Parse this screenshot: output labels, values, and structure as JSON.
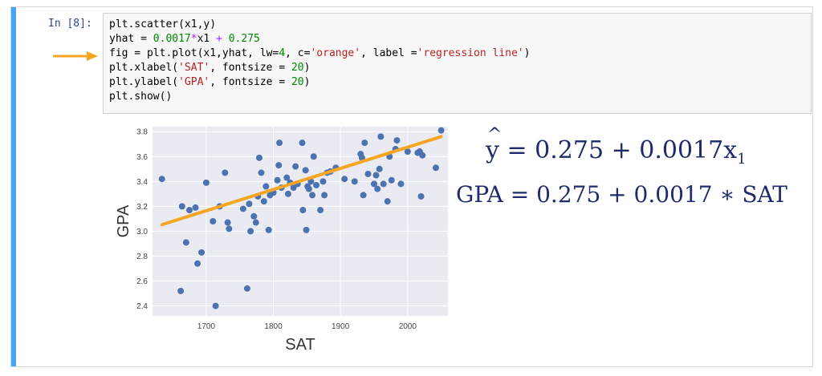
{
  "cell": {
    "prompt": "In [8]:",
    "code_lines": [
      {
        "parts": [
          {
            "t": "plt.scatter(x1,y)",
            "c": ""
          }
        ]
      },
      {
        "parts": [
          {
            "t": "yhat = ",
            "c": ""
          },
          {
            "t": "0.0017",
            "c": "num"
          },
          {
            "t": "*",
            "c": "op"
          },
          {
            "t": "x1 ",
            "c": ""
          },
          {
            "t": "+",
            "c": "op"
          },
          {
            "t": " ",
            "c": ""
          },
          {
            "t": "0.275",
            "c": "num"
          }
        ]
      },
      {
        "parts": [
          {
            "t": "fig = plt.plot(x1,yhat, lw=",
            "c": ""
          },
          {
            "t": "4",
            "c": "num"
          },
          {
            "t": ", c=",
            "c": ""
          },
          {
            "t": "'orange'",
            "c": "str"
          },
          {
            "t": ", label =",
            "c": ""
          },
          {
            "t": "'regression line'",
            "c": "str"
          },
          {
            "t": ")",
            "c": ""
          }
        ]
      },
      {
        "parts": [
          {
            "t": "plt.xlabel(",
            "c": ""
          },
          {
            "t": "'SAT'",
            "c": "str"
          },
          {
            "t": ", fontsize = ",
            "c": ""
          },
          {
            "t": "20",
            "c": "num"
          },
          {
            "t": ")",
            "c": ""
          }
        ]
      },
      {
        "parts": [
          {
            "t": "plt.ylabel(",
            "c": ""
          },
          {
            "t": "'GPA'",
            "c": "str"
          },
          {
            "t": ", fontsize = ",
            "c": ""
          },
          {
            "t": "20",
            "c": "num"
          },
          {
            "t": ")",
            "c": ""
          }
        ]
      },
      {
        "parts": [
          {
            "t": "plt.show()",
            "c": ""
          }
        ]
      }
    ]
  },
  "equations": {
    "eq1_lhs": "y",
    "eq1_rhs": " = 0.275 + 0.0017x",
    "eq1_sub": "1",
    "eq2": "GPA = 0.275 + 0.0017 ∗ SAT"
  },
  "colors": {
    "accent_bar": "#42a5f5",
    "arrow": "#f5a623",
    "points": "#4c72b0",
    "regression": "#f5a623",
    "plot_bg": "#eaeaf2"
  },
  "chart_data": {
    "type": "scatter",
    "xlabel": "SAT",
    "ylabel": "GPA",
    "xlim": [
      1620,
      2060
    ],
    "ylim": [
      2.32,
      3.84
    ],
    "xticks": [
      1700,
      1800,
      1900,
      2000
    ],
    "yticks": [
      2.4,
      2.6,
      2.8,
      3.0,
      3.2,
      3.4,
      3.6,
      3.8
    ],
    "xtick_labels": [
      "1700",
      "1800",
      "1900",
      "2000"
    ],
    "ytick_labels": [
      "2.4",
      "2.6",
      "2.8",
      "3.0",
      "3.2",
      "3.4",
      "3.6",
      "3.8"
    ],
    "grid": true,
    "points": [
      [
        1634,
        3.42
      ],
      [
        1662,
        2.52
      ],
      [
        1664,
        3.2
      ],
      [
        1670,
        2.91
      ],
      [
        1675,
        3.17
      ],
      [
        1684,
        3.19
      ],
      [
        1687,
        2.74
      ],
      [
        1693,
        2.83
      ],
      [
        1700,
        3.39
      ],
      [
        1710,
        3.08
      ],
      [
        1714,
        2.4
      ],
      [
        1720,
        3.2
      ],
      [
        1728,
        3.47
      ],
      [
        1732,
        3.07
      ],
      [
        1734,
        3.02
      ],
      [
        1755,
        3.18
      ],
      [
        1761,
        2.54
      ],
      [
        1764,
        3.22
      ],
      [
        1766,
        3.0
      ],
      [
        1771,
        3.12
      ],
      [
        1774,
        3.07
      ],
      [
        1777,
        3.28
      ],
      [
        1779,
        3.59
      ],
      [
        1782,
        3.47
      ],
      [
        1786,
        3.24
      ],
      [
        1789,
        3.36
      ],
      [
        1793,
        3.01
      ],
      [
        1795,
        3.29
      ],
      [
        1800,
        3.31
      ],
      [
        1806,
        3.41
      ],
      [
        1808,
        3.53
      ],
      [
        1809,
        3.71
      ],
      [
        1812,
        3.35
      ],
      [
        1820,
        3.43
      ],
      [
        1822,
        3.3
      ],
      [
        1825,
        3.39
      ],
      [
        1830,
        3.35
      ],
      [
        1833,
        3.52
      ],
      [
        1836,
        3.38
      ],
      [
        1843,
        3.71
      ],
      [
        1844,
        3.17
      ],
      [
        1848,
        3.49
      ],
      [
        1849,
        3.01
      ],
      [
        1851,
        3.36
      ],
      [
        1853,
        3.34
      ],
      [
        1856,
        3.4
      ],
      [
        1858,
        3.29
      ],
      [
        1860,
        3.6
      ],
      [
        1864,
        3.37
      ],
      [
        1870,
        3.17
      ],
      [
        1874,
        3.4
      ],
      [
        1876,
        3.29
      ],
      [
        1880,
        3.47
      ],
      [
        1885,
        3.48
      ],
      [
        1893,
        3.51
      ],
      [
        1906,
        3.42
      ],
      [
        1921,
        3.4
      ],
      [
        1930,
        3.62
      ],
      [
        1932,
        3.59
      ],
      [
        1934,
        3.29
      ],
      [
        1936,
        3.71
      ],
      [
        1941,
        3.46
      ],
      [
        1950,
        3.38
      ],
      [
        1953,
        3.45
      ],
      [
        1955,
        3.34
      ],
      [
        1958,
        3.5
      ],
      [
        1960,
        3.76
      ],
      [
        1964,
        3.38
      ],
      [
        1970,
        3.24
      ],
      [
        1973,
        3.6
      ],
      [
        1976,
        3.41
      ],
      [
        1982,
        3.66
      ],
      [
        1984,
        3.73
      ],
      [
        1990,
        3.38
      ],
      [
        2000,
        3.64
      ],
      [
        2015,
        3.63
      ],
      [
        2018,
        3.64
      ],
      [
        2020,
        3.28
      ],
      [
        2022,
        3.61
      ],
      [
        2042,
        3.51
      ],
      [
        2050,
        3.81
      ]
    ],
    "regression": {
      "label": "regression line",
      "slope": 0.0017,
      "intercept": 0.275,
      "x": [
        1634,
        2050
      ]
    }
  }
}
